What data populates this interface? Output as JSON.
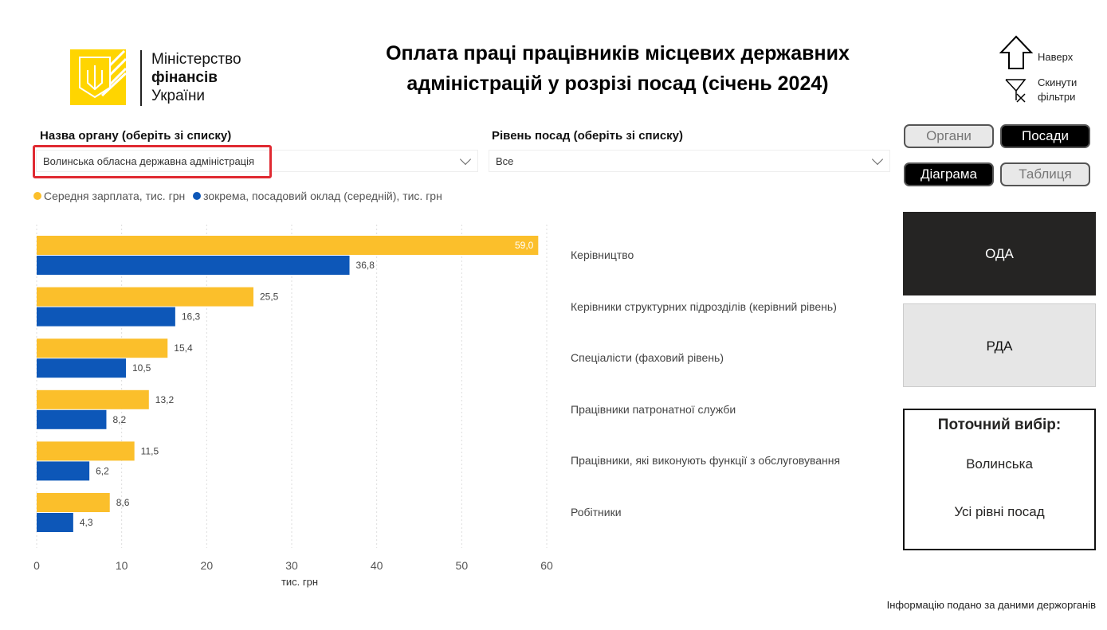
{
  "logo": {
    "line1": "Міністерство",
    "line2": "фінансів",
    "line3": "України"
  },
  "title": "Оплата праці працівників місцевих державних адміністрацій у розрізі посад (січень 2024)",
  "nav": {
    "top_label": "Наверх",
    "reset_label1": "Скинути",
    "reset_label2": "фільтри"
  },
  "filters": {
    "organ_label": "Назва органу (оберіть зі списку)",
    "organ_value": "Волинська обласна державна адміністрація",
    "level_label": "Рівень посад (оберіть зі списку)",
    "level_value": "Все"
  },
  "toggles": {
    "organy": "Органи",
    "posady": "Посади",
    "diagrama": "Діаграма",
    "tablytsia": "Таблиця"
  },
  "tiles": {
    "oda": "ОДА",
    "rda": "РДА"
  },
  "selection": {
    "title": "Поточний вибір:",
    "region": "Волинська",
    "level": "Усі рівні посад"
  },
  "footer": "Інформацію подано за даними держорганів",
  "chart_data": {
    "type": "bar",
    "orientation": "horizontal",
    "categories": [
      "Керівництво",
      "Керівники структурних підрозділів (керівний рівень)",
      "Спеціалісти (фаховий рівень)",
      "Працівники патронатної служби",
      "Працівники, які виконують функції з обслуговування",
      "Робітники"
    ],
    "series": [
      {
        "name": "Середня зарплата, тис. грн",
        "color": "#fbbf2b",
        "values": [
          59.0,
          25.5,
          15.4,
          13.2,
          11.5,
          8.6
        ],
        "labels": [
          "59,0",
          "25,5",
          "15,4",
          "13,2",
          "11,5",
          "8,6"
        ]
      },
      {
        "name": "зокрема, посадовий оклад (середній), тис. грн",
        "color": "#0d57b8",
        "values": [
          36.8,
          16.3,
          10.5,
          8.2,
          6.2,
          4.3
        ],
        "labels": [
          "36,8",
          "16,3",
          "10,5",
          "8,2",
          "6,2",
          "4,3"
        ]
      }
    ],
    "xlabel": "тис. грн",
    "xlim": [
      0,
      60
    ],
    "xticks": [
      "0",
      "10",
      "20",
      "30",
      "40",
      "50",
      "60"
    ],
    "grid": true,
    "legend": "top-left"
  }
}
